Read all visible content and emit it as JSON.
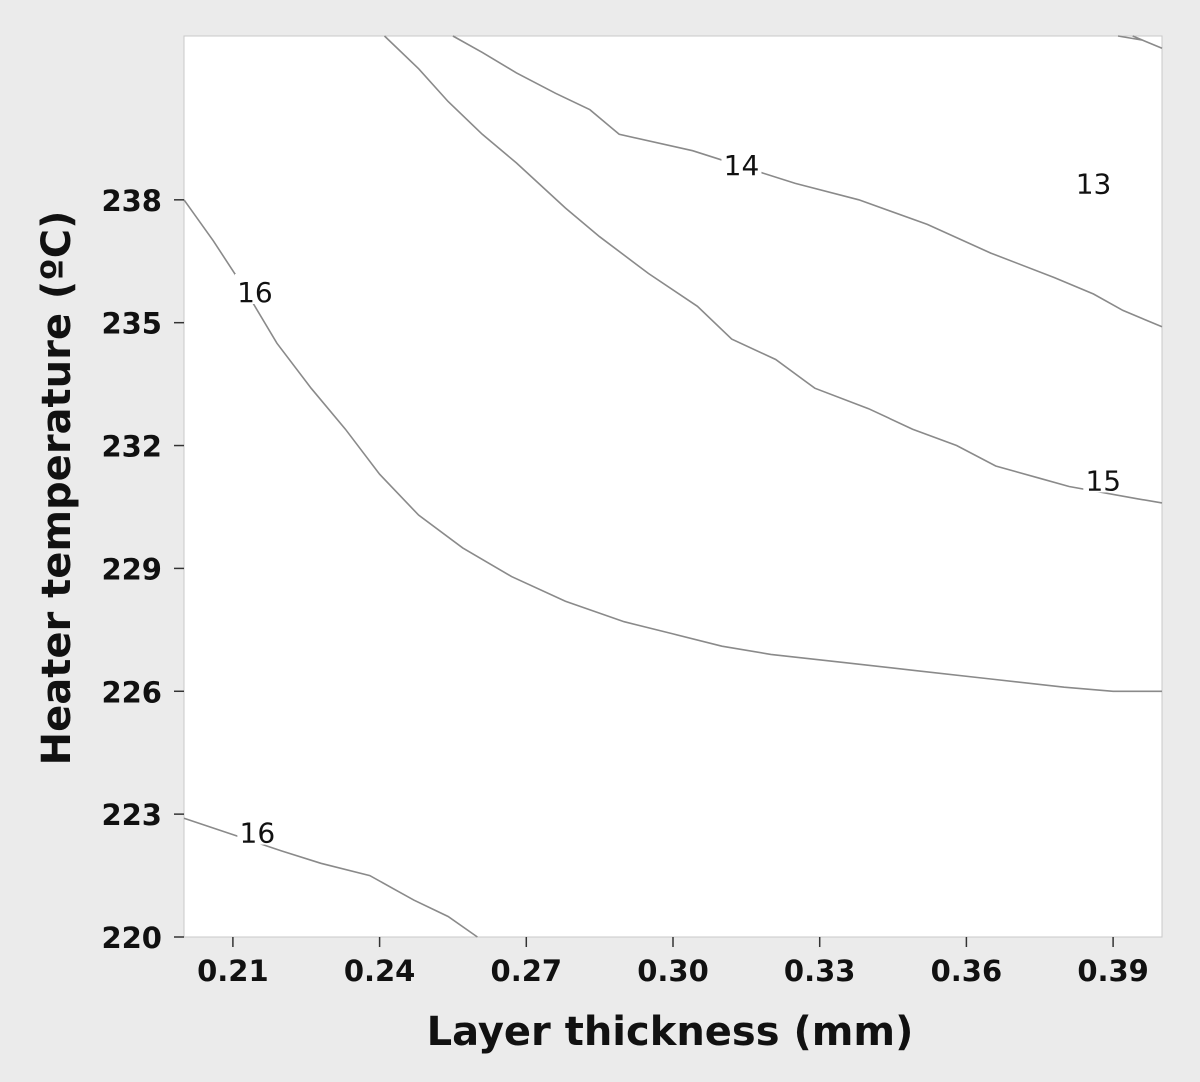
{
  "chart_data": {
    "type": "contour",
    "xlabel": "Layer thickness (mm)",
    "ylabel": "Heater temperature (ºC)",
    "xlim": [
      0.2,
      0.4
    ],
    "ylim": [
      220,
      242
    ],
    "x_ticks": [
      "0.21",
      "0.24",
      "0.27",
      "0.30",
      "0.33",
      "0.36",
      "0.39"
    ],
    "y_ticks": [
      "220",
      "223",
      "226",
      "229",
      "232",
      "235",
      "238"
    ],
    "grid": false,
    "background_color": "#ebebeb",
    "plot_background_color": "#ffffff",
    "line_color": "#8a8a8a",
    "contours": [
      {
        "level": "13",
        "label": {
          "text": "13",
          "at": [
            0.386,
            238.35
          ]
        },
        "points": [
          [
            0.255,
            242.0
          ],
          [
            0.261,
            241.6
          ],
          [
            0.268,
            241.1
          ],
          [
            0.276,
            240.6
          ],
          [
            0.283,
            240.2
          ],
          [
            0.289,
            239.6
          ],
          [
            0.304,
            239.2
          ],
          [
            0.325,
            238.4
          ],
          [
            0.338,
            238.0
          ],
          [
            0.352,
            237.4
          ],
          [
            0.365,
            236.7
          ],
          [
            0.378,
            236.1
          ],
          [
            0.386,
            235.7
          ],
          [
            0.392,
            235.3
          ],
          [
            0.4,
            234.9
          ]
        ]
      },
      {
        "level": "14",
        "label": {
          "text": "14",
          "at": [
            0.314,
            238.8
          ]
        },
        "points": [
          [
            0.394,
            242.0
          ],
          [
            0.4,
            241.7
          ],
          [
            0.396,
            241.9
          ],
          [
            0.391,
            242.0
          ]
        ]
      },
      {
        "level": "15",
        "label": {
          "text": "15",
          "at": [
            0.388,
            231.1
          ]
        },
        "points": [
          [
            0.241,
            242.0
          ],
          [
            0.248,
            241.2
          ],
          [
            0.254,
            240.4
          ],
          [
            0.261,
            239.6
          ],
          [
            0.268,
            238.9
          ],
          [
            0.278,
            237.8
          ],
          [
            0.285,
            237.1
          ],
          [
            0.295,
            236.2
          ],
          [
            0.305,
            235.4
          ],
          [
            0.312,
            234.6
          ],
          [
            0.321,
            234.1
          ],
          [
            0.329,
            233.4
          ],
          [
            0.34,
            232.9
          ],
          [
            0.349,
            232.4
          ],
          [
            0.358,
            232.0
          ],
          [
            0.366,
            231.5
          ],
          [
            0.375,
            231.2
          ],
          [
            0.381,
            231.0
          ],
          [
            0.395,
            230.7
          ],
          [
            0.4,
            230.6
          ]
        ]
      },
      {
        "level": "16",
        "label": {
          "text": "16",
          "at": [
            0.2145,
            235.7
          ]
        },
        "points": [
          [
            0.2,
            238.0
          ],
          [
            0.206,
            237.0
          ],
          [
            0.212,
            235.9
          ],
          [
            0.219,
            234.5
          ],
          [
            0.226,
            233.4
          ],
          [
            0.233,
            232.4
          ],
          [
            0.24,
            231.3
          ],
          [
            0.248,
            230.3
          ],
          [
            0.257,
            229.5
          ],
          [
            0.267,
            228.8
          ],
          [
            0.278,
            228.2
          ],
          [
            0.29,
            227.7
          ],
          [
            0.3,
            227.4
          ],
          [
            0.31,
            227.1
          ],
          [
            0.32,
            226.9
          ],
          [
            0.335,
            226.7
          ],
          [
            0.35,
            226.5
          ],
          [
            0.365,
            226.3
          ],
          [
            0.38,
            226.1
          ],
          [
            0.39,
            226.0
          ],
          [
            0.4,
            226.0
          ]
        ]
      },
      {
        "level": "16",
        "label": {
          "text": "16",
          "at": [
            0.215,
            222.5
          ]
        },
        "points": [
          [
            0.2,
            222.9
          ],
          [
            0.21,
            222.5
          ],
          [
            0.22,
            222.1
          ],
          [
            0.228,
            221.8
          ],
          [
            0.238,
            221.5
          ],
          [
            0.247,
            220.9
          ],
          [
            0.254,
            220.5
          ],
          [
            0.26,
            220.0
          ]
        ]
      }
    ]
  }
}
